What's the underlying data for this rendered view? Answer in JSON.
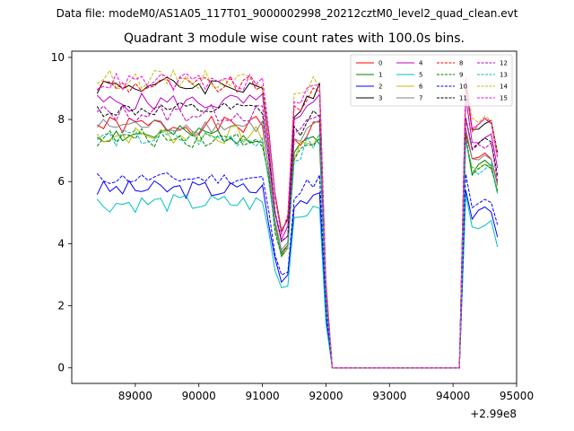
{
  "figure": {
    "supertitle": "Data file: modeM0/AS1A05_117T01_9000002998_20212cztM0_level2_quad_clean.evt"
  },
  "chart_data": {
    "type": "line",
    "title": "Quadrant 3 module wise count rates with 100.0s bins.",
    "xlabel": "",
    "ylabel": "",
    "x_offset_label": "+2.99e8",
    "xlim": [
      88000,
      95000
    ],
    "ylim": [
      -0.5,
      10.2
    ],
    "x_ticks": [
      89000,
      90000,
      91000,
      92000,
      93000,
      94000,
      95000
    ],
    "x_tick_labels": [
      "89000",
      "90000",
      "91000",
      "92000",
      "93000",
      "94000",
      "95000"
    ],
    "y_ticks": [
      0,
      2,
      4,
      6,
      8,
      10
    ],
    "y_tick_labels": [
      "0",
      "2",
      "4",
      "6",
      "8",
      "10"
    ],
    "grid": false,
    "legend_placement": "top-right",
    "legend_columns": 4,
    "gap_interval": [
      92100,
      94100
    ],
    "profile_x": [
      88400,
      88500,
      88600,
      88700,
      88800,
      88900,
      89000,
      89100,
      89200,
      89300,
      89400,
      89500,
      89600,
      89700,
      89800,
      89900,
      90000,
      90100,
      90200,
      90300,
      90400,
      90500,
      90600,
      90700,
      90800,
      90900,
      91000,
      91100,
      91200,
      91300,
      91400,
      91500,
      91600,
      91700,
      91800,
      91900,
      92000,
      92100,
      94100,
      94200,
      94300,
      94400,
      94500,
      94600,
      94700
    ],
    "profile_factor": [
      1,
      1,
      1,
      1,
      1,
      1,
      1,
      1,
      1,
      1,
      1,
      1,
      1,
      1,
      1,
      1,
      1,
      1,
      1,
      1,
      1,
      1,
      1,
      1,
      1,
      1,
      1,
      0.82,
      0.6,
      0.48,
      0.52,
      0.92,
      0.93,
      0.97,
      0.98,
      1,
      0.3,
      0,
      0,
      1,
      0.85,
      0.86,
      0.88,
      0.87,
      0.75
    ],
    "series": [
      {
        "name": "0",
        "color": "#ff0000",
        "dash": "solid",
        "base": 7.8,
        "jitter": 0.3
      },
      {
        "name": "1",
        "color": "#008000",
        "dash": "solid",
        "base": 7.5,
        "jitter": 0.3
      },
      {
        "name": "2",
        "color": "#0000ff",
        "dash": "solid",
        "base": 5.75,
        "jitter": 0.3
      },
      {
        "name": "3",
        "color": "#000000",
        "dash": "solid",
        "base": 9.1,
        "jitter": 0.3
      },
      {
        "name": "4",
        "color": "#bf00bf",
        "dash": "solid",
        "base": 8.55,
        "jitter": 0.3
      },
      {
        "name": "5",
        "color": "#00bfbf",
        "dash": "solid",
        "base": 5.3,
        "jitter": 0.3
      },
      {
        "name": "6",
        "color": "#bfbf00",
        "dash": "solid",
        "base": 7.5,
        "jitter": 0.3
      },
      {
        "name": "7",
        "color": "#808080",
        "dash": "solid",
        "base": 7.8,
        "jitter": 0.25
      },
      {
        "name": "8",
        "color": "#ff0000",
        "dash": "dashed",
        "base": 9.1,
        "jitter": 0.3
      },
      {
        "name": "9",
        "color": "#008000",
        "dash": "dashed",
        "base": 7.4,
        "jitter": 0.3
      },
      {
        "name": "10",
        "color": "#0000ff",
        "dash": "dashed",
        "base": 6.1,
        "jitter": 0.2
      },
      {
        "name": "11",
        "color": "#000000",
        "dash": "dashed",
        "base": 8.3,
        "jitter": 0.25
      },
      {
        "name": "12",
        "color": "#bf00bf",
        "dash": "dashed",
        "base": 8.2,
        "jitter": 0.3
      },
      {
        "name": "13",
        "color": "#00bfbf",
        "dash": "dashed",
        "base": 7.4,
        "jitter": 0.3
      },
      {
        "name": "14",
        "color": "#bfbf00",
        "dash": "dashed",
        "base": 9.3,
        "jitter": 0.3
      },
      {
        "name": "15",
        "color": "#ff00ff",
        "dash": "dashed",
        "base": 9.2,
        "jitter": 0.3
      }
    ]
  }
}
